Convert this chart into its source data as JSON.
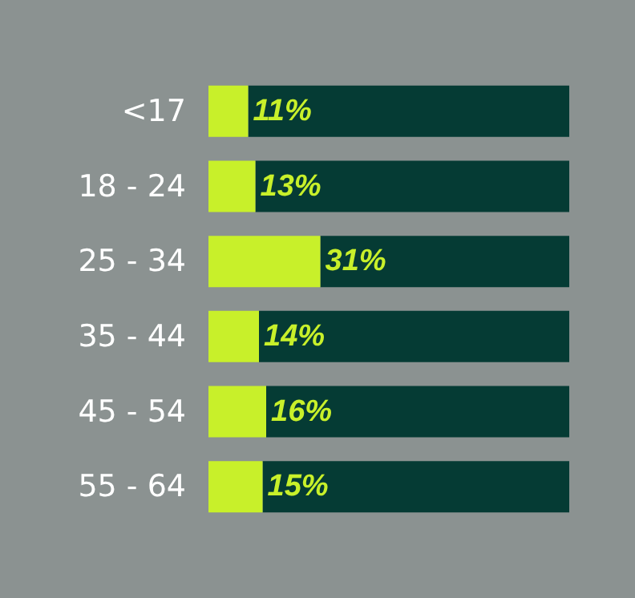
{
  "chart_data": {
    "type": "bar",
    "orientation": "horizontal",
    "stacked": true,
    "categories": [
      "<17",
      "18 - 24",
      "25 - 34",
      "35 - 44",
      "45 - 54",
      "55 - 64"
    ],
    "series": [
      {
        "color": "#c8f02a",
        "values": [
          11,
          13,
          31,
          14,
          16,
          15
        ],
        "value_labels": [
          "11%",
          "13%",
          "31%",
          "14%",
          "16%",
          "15%"
        ]
      },
      {
        "color": "#053b34",
        "values": [
          89,
          87,
          69,
          86,
          84,
          85
        ]
      }
    ],
    "xlim": [
      0,
      100
    ]
  }
}
